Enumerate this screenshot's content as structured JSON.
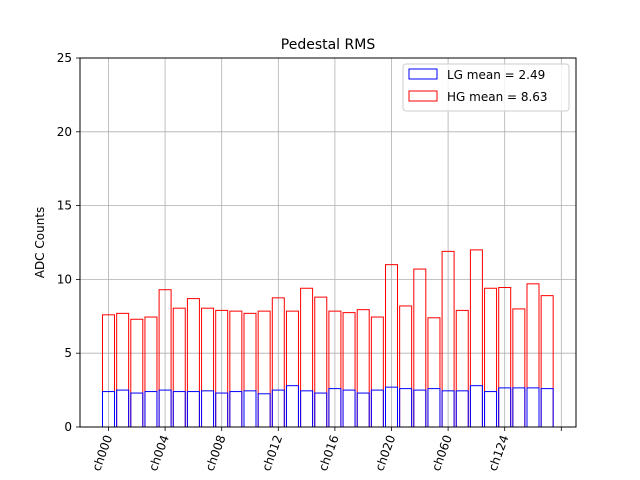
{
  "chart_data": {
    "type": "bar",
    "title": "Pedestal RMS",
    "ylabel": "ADC Counts",
    "xlabel": "",
    "ylim": [
      0,
      25
    ],
    "yticks": [
      0,
      5,
      10,
      15,
      20,
      25
    ],
    "xtick_labels": [
      "ch000",
      "ch004",
      "ch008",
      "ch012",
      "ch016",
      "ch020",
      "ch060",
      "ch124",
      ""
    ],
    "grid": true,
    "legend_position": "top-right",
    "series": [
      {
        "name": "LG mean = 2.49",
        "color": "#0000ff",
        "values": [
          2.4,
          2.5,
          2.3,
          2.4,
          2.5,
          2.4,
          2.4,
          2.45,
          2.3,
          2.4,
          2.45,
          2.25,
          2.5,
          2.8,
          2.45,
          2.3,
          2.6,
          2.5,
          2.3,
          2.5,
          2.7,
          2.6,
          2.5,
          2.6,
          2.45,
          2.45,
          2.8,
          2.4,
          2.65,
          2.65,
          2.65,
          2.6
        ]
      },
      {
        "name": "HG mean = 8.63",
        "color": "#ff0000",
        "values": [
          7.6,
          7.7,
          7.3,
          7.45,
          9.3,
          8.05,
          8.7,
          8.05,
          7.9,
          7.85,
          7.7,
          7.85,
          8.75,
          7.85,
          9.4,
          8.8,
          7.85,
          7.75,
          7.95,
          7.45,
          11.0,
          8.2,
          10.7,
          7.4,
          11.9,
          7.9,
          12.0,
          9.4,
          9.45,
          8.0,
          9.7,
          8.9
        ]
      }
    ]
  }
}
